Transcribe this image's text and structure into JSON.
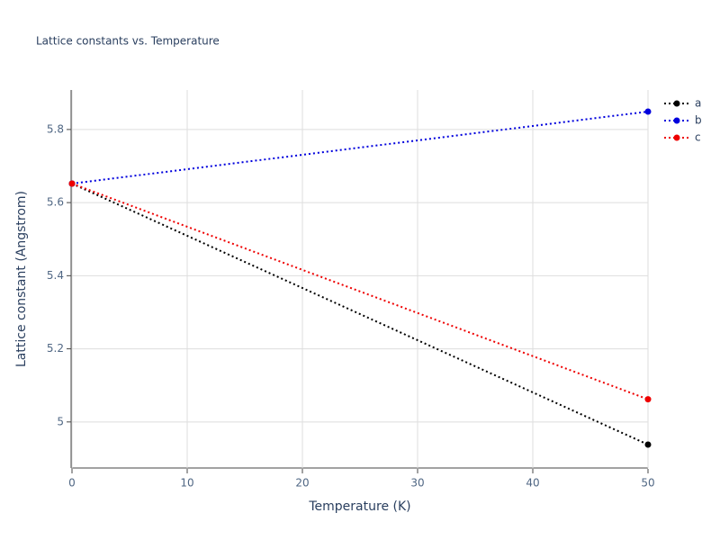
{
  "chart_data": {
    "type": "line",
    "title": "Lattice constants vs. Temperature",
    "x_label": "Temperature (K)",
    "y_label": "Lattice constant (Angstrom)",
    "x": [
      0,
      50
    ],
    "series": [
      {
        "name": "a",
        "color": "#000000",
        "values": [
          5.652,
          4.938
        ]
      },
      {
        "name": "b",
        "color": "#0000dd",
        "values": [
          5.652,
          5.849
        ]
      },
      {
        "name": "c",
        "color": "#ee0000",
        "values": [
          5.652,
          5.062
        ]
      }
    ],
    "xlim": [
      0,
      50
    ],
    "xticks": [
      0,
      10,
      20,
      30,
      40,
      50
    ],
    "ylim": [
      4.874,
      5.908
    ],
    "yticks": [
      5,
      5.2,
      5.4,
      5.6,
      5.8
    ],
    "grid": true,
    "legend": "upper right outside"
  }
}
